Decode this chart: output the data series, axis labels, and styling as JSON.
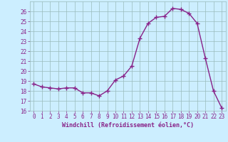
{
  "xlabel": "Windchill (Refroidissement éolien,°C)",
  "x_values": [
    0,
    1,
    2,
    3,
    4,
    5,
    6,
    7,
    8,
    9,
    10,
    11,
    12,
    13,
    14,
    15,
    16,
    17,
    18,
    19,
    20,
    21,
    22,
    23
  ],
  "y_values": [
    18.7,
    18.4,
    18.3,
    18.2,
    18.3,
    18.3,
    17.8,
    17.8,
    17.5,
    18.0,
    19.1,
    19.5,
    20.5,
    23.3,
    24.8,
    25.4,
    25.5,
    26.3,
    26.2,
    25.8,
    24.8,
    21.3,
    18.0,
    16.3
  ],
  "line_color": "#882288",
  "marker": "+",
  "marker_size": 4,
  "marker_lw": 1.0,
  "line_width": 1.0,
  "bg_color": "#cceeff",
  "grid_color": "#99bbbb",
  "tick_color": "#882288",
  "label_color": "#882288",
  "ylim": [
    16,
    27
  ],
  "xlim": [
    -0.5,
    23.5
  ],
  "yticks": [
    16,
    17,
    18,
    19,
    20,
    21,
    22,
    23,
    24,
    25,
    26
  ],
  "xticks": [
    0,
    1,
    2,
    3,
    4,
    5,
    6,
    7,
    8,
    9,
    10,
    11,
    12,
    13,
    14,
    15,
    16,
    17,
    18,
    19,
    20,
    21,
    22,
    23
  ],
  "tick_fontsize": 5.5,
  "xlabel_fontsize": 6.0
}
